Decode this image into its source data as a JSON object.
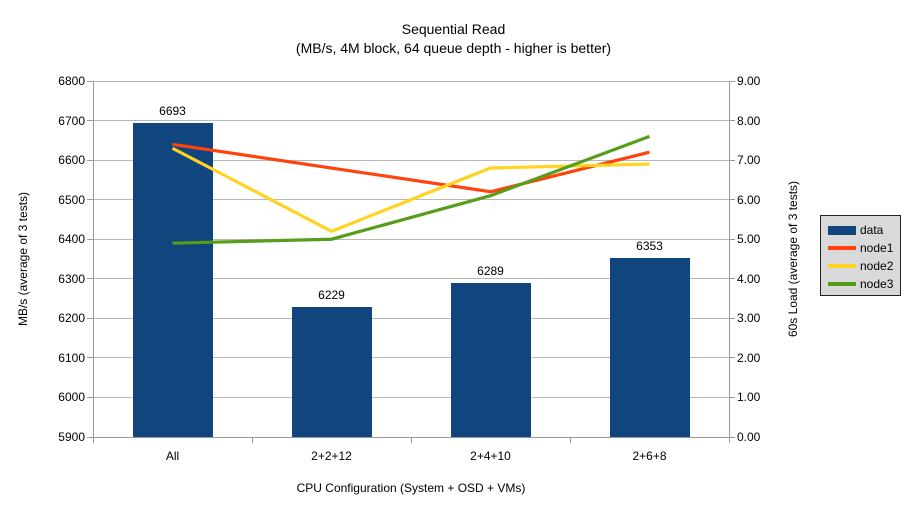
{
  "chart_data": {
    "type": "bar+line combo",
    "title": "Sequential Read",
    "subtitle": "(MB/s, 4M block, 64 queue depth - higher is better)",
    "categories": [
      "All",
      "2+2+12",
      "2+4+10",
      "2+6+8"
    ],
    "series": [
      {
        "name": "data",
        "type": "bar",
        "axis": "left",
        "color": "#10457d",
        "values": [
          6693,
          6229,
          6289,
          6353
        ],
        "show_data_labels": true
      },
      {
        "name": "node1",
        "type": "line",
        "axis": "right",
        "color": "#ff420e",
        "values": [
          7.4,
          6.8,
          6.2,
          7.2
        ]
      },
      {
        "name": "node2",
        "type": "line",
        "axis": "right",
        "color": "#ffd320",
        "values": [
          7.3,
          5.2,
          6.8,
          6.9
        ]
      },
      {
        "name": "node3",
        "type": "line",
        "axis": "right",
        "color": "#579d1c",
        "values": [
          4.9,
          5.0,
          6.1,
          7.6
        ]
      }
    ],
    "left_axis": {
      "label": "MB/s (average of 3 tests)",
      "min": 5900,
      "max": 6800,
      "step": 100,
      "ticks": [
        "5900",
        "6000",
        "6100",
        "6200",
        "6300",
        "6400",
        "6500",
        "6600",
        "6700",
        "6800"
      ]
    },
    "right_axis": {
      "label": "60s Load (average of 3 tests)",
      "min": 0,
      "max": 9,
      "step": 1,
      "ticks": [
        "0.00",
        "1.00",
        "2.00",
        "3.00",
        "4.00",
        "5.00",
        "6.00",
        "7.00",
        "8.00",
        "9.00"
      ]
    },
    "x_axis": {
      "label": "CPU Configuration (System + OSD + VMs)"
    },
    "legend": {
      "position": "right",
      "items": [
        "data",
        "node1",
        "node2",
        "node3"
      ],
      "background": "#d9d9d9",
      "border_color": "#222222"
    },
    "grid": true,
    "style": {
      "gridline_color": "#b8b8b8",
      "axis_line_color": "#9a9a9a",
      "background": "#ffffff",
      "text_color": "#000000"
    }
  }
}
